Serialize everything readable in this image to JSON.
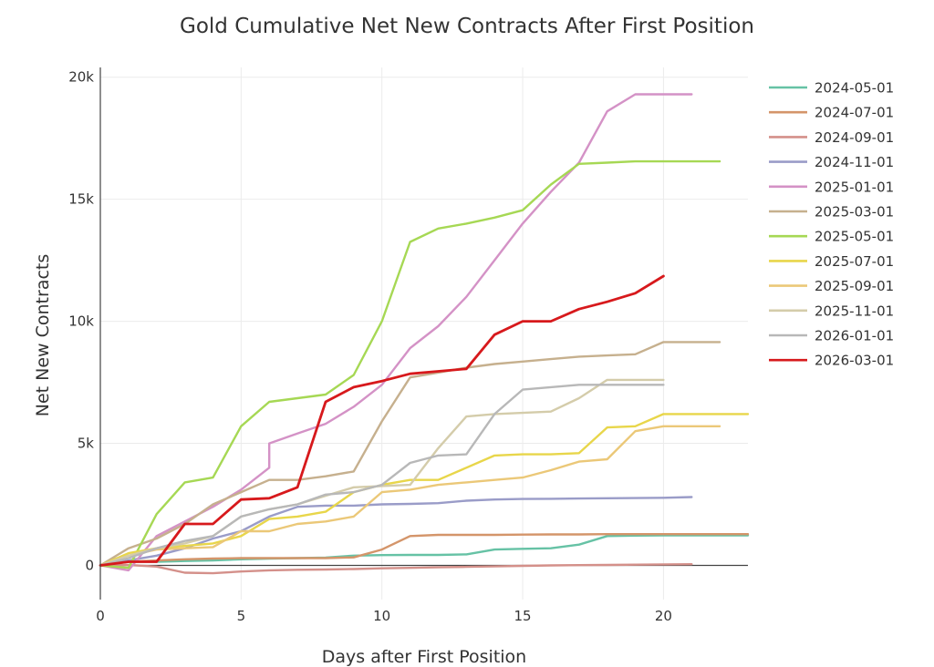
{
  "chart_data": {
    "type": "line",
    "title": "Gold Cumulative Net New Contracts After First Position",
    "xlabel": "Days after First Position",
    "ylabel": "Net New Contracts",
    "xlim": [
      0,
      23
    ],
    "ylim": [
      -1400,
      20400
    ],
    "x_ticks": [
      {
        "value": 0,
        "label": "0"
      },
      {
        "value": 5,
        "label": "5"
      },
      {
        "value": 10,
        "label": "10"
      },
      {
        "value": 15,
        "label": "15"
      },
      {
        "value": 20,
        "label": "20"
      }
    ],
    "y_ticks": [
      {
        "value": 0,
        "label": "0"
      },
      {
        "value": 5000,
        "label": "5k"
      },
      {
        "value": 10000,
        "label": "10k"
      },
      {
        "value": 15000,
        "label": "15k"
      },
      {
        "value": 20000,
        "label": "20k"
      }
    ],
    "grid": true,
    "legend_position": "right",
    "series": [
      {
        "name": "2024-05-01",
        "color": "#66c2a5",
        "x": [
          0,
          1,
          2,
          3,
          4,
          5,
          6,
          7,
          8,
          9,
          10,
          11,
          12,
          13,
          14,
          15,
          16,
          17,
          18,
          19,
          20,
          21,
          22,
          23
        ],
        "y": [
          0,
          150,
          150,
          180,
          200,
          250,
          280,
          300,
          320,
          400,
          420,
          430,
          430,
          450,
          650,
          680,
          700,
          850,
          1200,
          1220,
          1230,
          1230,
          1230,
          1230
        ]
      },
      {
        "name": "2024-07-01",
        "color": "#d4956a",
        "x": [
          0,
          1,
          2,
          3,
          4,
          5,
          6,
          7,
          8,
          9,
          10,
          11,
          12,
          13,
          14,
          15,
          16,
          17,
          18,
          19,
          20,
          21,
          22,
          23
        ],
        "y": [
          0,
          150,
          200,
          250,
          280,
          300,
          300,
          300,
          300,
          330,
          650,
          1200,
          1250,
          1250,
          1250,
          1260,
          1270,
          1270,
          1280,
          1280,
          1280,
          1280,
          1280,
          1280
        ]
      },
      {
        "name": "2024-09-01",
        "color": "#d4908a",
        "x": [
          0,
          1,
          2,
          3,
          4,
          5,
          6,
          7,
          8,
          9,
          10,
          11,
          12,
          13,
          14,
          15,
          16,
          17,
          18,
          19,
          20,
          21
        ],
        "y": [
          0,
          20,
          -50,
          -300,
          -320,
          -250,
          -200,
          -180,
          -170,
          -150,
          -120,
          -100,
          -80,
          -60,
          -40,
          -20,
          0,
          10,
          20,
          30,
          40,
          50
        ]
      },
      {
        "name": "2024-11-01",
        "color": "#9a9cc8",
        "x": [
          0,
          1,
          2,
          3,
          4,
          5,
          6,
          7,
          8,
          9,
          10,
          11,
          12,
          13,
          14,
          15,
          16,
          17,
          18,
          19,
          20,
          21
        ],
        "y": [
          0,
          200,
          400,
          700,
          1100,
          1400,
          2000,
          2400,
          2450,
          2450,
          2500,
          2520,
          2550,
          2650,
          2700,
          2720,
          2730,
          2740,
          2750,
          2760,
          2770,
          2800
        ]
      },
      {
        "name": "2025-01-01",
        "color": "#d492c6",
        "x": [
          0,
          1,
          2,
          3,
          4,
          5,
          6,
          6,
          7,
          8,
          9,
          10,
          11,
          12,
          13,
          14,
          15,
          16,
          17,
          18,
          19,
          20,
          21
        ],
        "y": [
          0,
          -200,
          1200,
          1800,
          2400,
          3100,
          4000,
          5000,
          5400,
          5800,
          6500,
          7400,
          8900,
          9800,
          11000,
          12500,
          14000,
          15300,
          16500,
          18600,
          19300,
          19300,
          19300
        ]
      },
      {
        "name": "2025-03-01",
        "color": "#c6b08e",
        "x": [
          0,
          1,
          2,
          3,
          4,
          5,
          6,
          7,
          8,
          9,
          10,
          11,
          12,
          13,
          14,
          15,
          16,
          17,
          18,
          19,
          20,
          21,
          22
        ],
        "y": [
          0,
          700,
          1100,
          1700,
          2500,
          3000,
          3500,
          3500,
          3650,
          3850,
          5900,
          7700,
          7900,
          8100,
          8250,
          8350,
          8450,
          8550,
          8600,
          8650,
          9150,
          9150,
          9150
        ]
      },
      {
        "name": "2025-05-01",
        "color": "#a6d854",
        "x": [
          0,
          1,
          2,
          3,
          4,
          5,
          6,
          7,
          8,
          9,
          10,
          11,
          12,
          13,
          14,
          15,
          16,
          17,
          18,
          19,
          20,
          21,
          22
        ],
        "y": [
          0,
          -100,
          2100,
          3400,
          3600,
          5700,
          6700,
          6850,
          7000,
          7800,
          10000,
          13250,
          13800,
          14000,
          14250,
          14550,
          15600,
          16450,
          16500,
          16550,
          16550,
          16550,
          16550
        ]
      },
      {
        "name": "2025-07-01",
        "color": "#e8d64a",
        "x": [
          0,
          1,
          2,
          3,
          4,
          5,
          6,
          7,
          8,
          9,
          10,
          11,
          12,
          13,
          14,
          15,
          16,
          17,
          18,
          19,
          20,
          21,
          22,
          23
        ],
        "y": [
          0,
          500,
          700,
          800,
          900,
          1200,
          1900,
          2000,
          2200,
          3000,
          3300,
          3500,
          3500,
          4000,
          4500,
          4550,
          4550,
          4600,
          5650,
          5700,
          6200,
          6200,
          6200,
          6200
        ]
      },
      {
        "name": "2025-09-01",
        "color": "#ebc878",
        "x": [
          0,
          1,
          2,
          3,
          4,
          5,
          6,
          7,
          8,
          9,
          10,
          11,
          12,
          13,
          14,
          15,
          16,
          17,
          18,
          19,
          20,
          21,
          22
        ],
        "y": [
          0,
          400,
          650,
          700,
          750,
          1400,
          1400,
          1700,
          1800,
          2000,
          3000,
          3100,
          3300,
          3400,
          3500,
          3600,
          3900,
          4250,
          4350,
          5500,
          5700,
          5700,
          5700
        ]
      },
      {
        "name": "2025-11-01",
        "color": "#d4ccaa",
        "x": [
          0,
          1,
          2,
          3,
          4,
          5,
          6,
          7,
          8,
          9,
          10,
          11,
          12,
          13,
          14,
          15,
          16,
          17,
          18,
          19,
          20
        ],
        "y": [
          0,
          400,
          700,
          900,
          1200,
          2000,
          2300,
          2500,
          2850,
          3200,
          3250,
          3300,
          4800,
          6100,
          6200,
          6250,
          6300,
          6850,
          7600,
          7600,
          7600
        ]
      },
      {
        "name": "2026-01-01",
        "color": "#b8b8b8",
        "x": [
          0,
          1,
          2,
          3,
          4,
          5,
          6,
          7,
          8,
          9,
          10,
          11,
          12,
          13,
          14,
          15,
          16,
          17,
          18,
          19,
          20
        ],
        "y": [
          0,
          300,
          700,
          1000,
          1200,
          2000,
          2300,
          2500,
          2900,
          3000,
          3300,
          4200,
          4500,
          4550,
          6200,
          7200,
          7300,
          7400,
          7400,
          7400,
          7400
        ]
      },
      {
        "name": "2026-03-01",
        "color": "#d7191c",
        "x": [
          0,
          1,
          2,
          3,
          4,
          5,
          6,
          7,
          8,
          9,
          10,
          11,
          12,
          13,
          14,
          15,
          16,
          17,
          18,
          19,
          20
        ],
        "y": [
          0,
          150,
          150,
          1700,
          1700,
          2700,
          2750,
          3200,
          6700,
          7300,
          7550,
          7850,
          7950,
          8050,
          9450,
          10000,
          10000,
          10500,
          10800,
          11150,
          11850
        ]
      }
    ]
  }
}
